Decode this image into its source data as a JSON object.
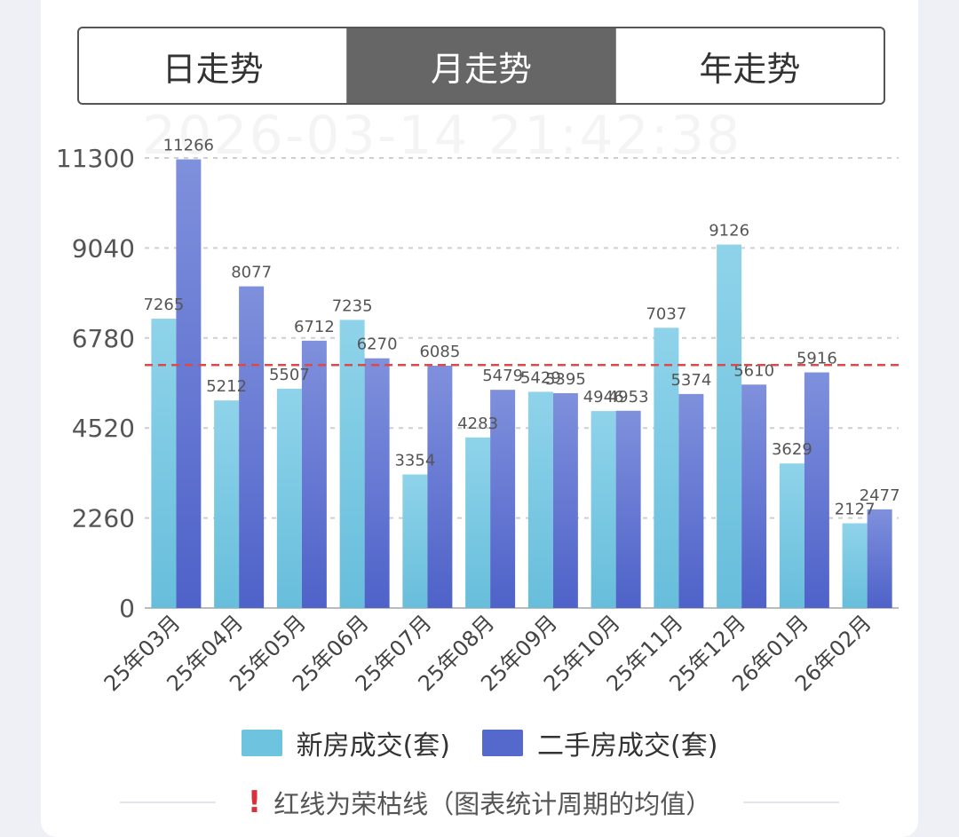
{
  "tabs": [
    {
      "label": "日走势",
      "active": false
    },
    {
      "label": "月走势",
      "active": true
    },
    {
      "label": "年走势",
      "active": false
    }
  ],
  "watermark": "2026-03-14 21:42:38",
  "colors": {
    "new_house": "#6ec3de",
    "second_hand": "#5b6fd0",
    "avg_line": "#d94b4b"
  },
  "chart_data": {
    "type": "bar",
    "categories": [
      "25年03月",
      "25年04月",
      "25年05月",
      "25年06月",
      "25年07月",
      "25年08月",
      "25年09月",
      "25年10月",
      "25年11月",
      "25年12月",
      "26年01月",
      "26年02月"
    ],
    "series": [
      {
        "name": "新房成交(套)",
        "values": [
          7265,
          5212,
          5507,
          7235,
          3354,
          4283,
          5429,
          4946,
          7037,
          9126,
          3629,
          2127
        ]
      },
      {
        "name": "二手房成交(套)",
        "values": [
          11266,
          8077,
          6712,
          6270,
          6085,
          5479,
          5395,
          4953,
          5374,
          5610,
          5916,
          2477
        ]
      }
    ],
    "yticks": [
      0,
      2260,
      4520,
      6780,
      9040,
      11300
    ],
    "ylim": [
      0,
      11300
    ],
    "average_line": 6100,
    "grid": true,
    "legend": "bottom"
  },
  "note": {
    "icon": "exclamation-icon",
    "text": "红线为荣枯线（图表统计周期的均值）"
  }
}
